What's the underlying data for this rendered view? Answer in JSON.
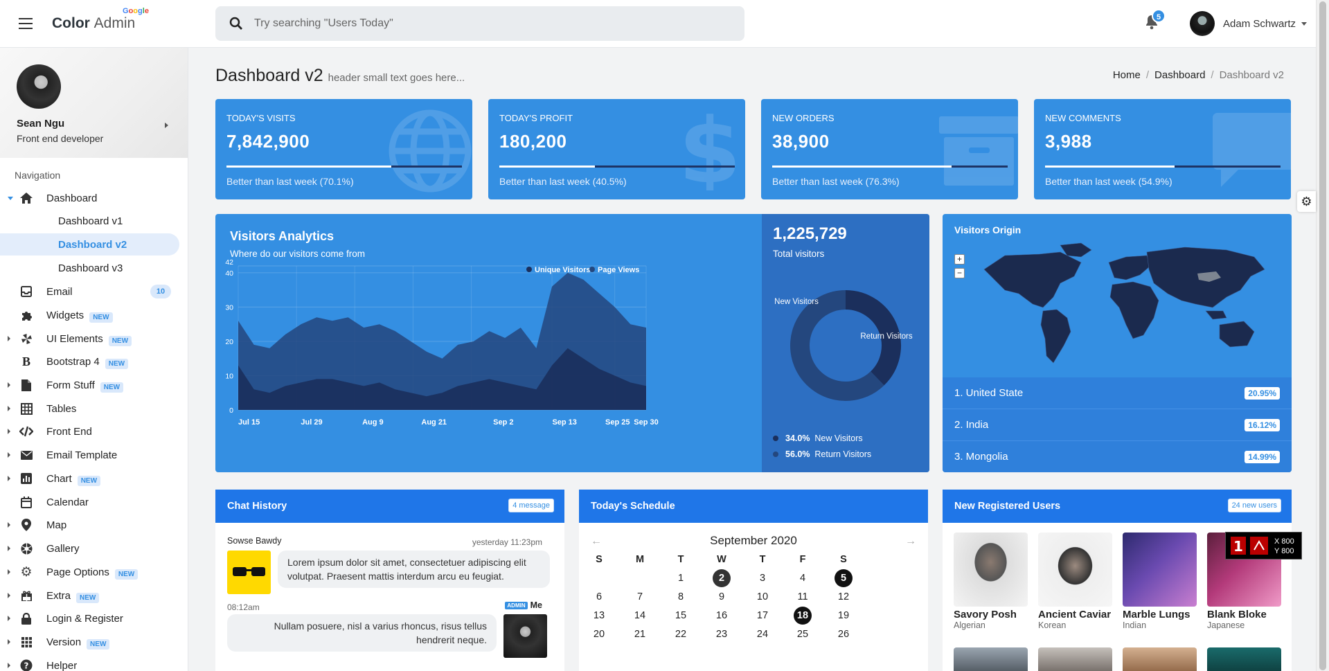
{
  "header": {
    "brand": "Color",
    "brand_light": "Admin",
    "brand_tag": "Google",
    "search_placeholder": "Try searching \"Users Today\"",
    "notifications_count": "5",
    "user_name": "Adam Schwartz"
  },
  "sidebar": {
    "profile_name": "Sean Ngu",
    "profile_role": "Front end developer",
    "nav_heading": "Navigation",
    "dashboard_label": "Dashboard",
    "sub": [
      "Dashboard v1",
      "Dashboard v2",
      "Dashboard v3"
    ],
    "items": [
      {
        "label": "Email",
        "count": "10"
      },
      {
        "label": "Widgets",
        "badge": "NEW"
      },
      {
        "label": "UI Elements",
        "badge": "NEW"
      },
      {
        "label": "Bootstrap 4",
        "badge": "NEW"
      },
      {
        "label": "Form Stuff",
        "badge": "NEW"
      },
      {
        "label": "Tables"
      },
      {
        "label": "Front End"
      },
      {
        "label": "Email Template"
      },
      {
        "label": "Chart",
        "badge": "NEW"
      },
      {
        "label": "Calendar"
      },
      {
        "label": "Map"
      },
      {
        "label": "Gallery"
      },
      {
        "label": "Page Options",
        "badge": "NEW"
      },
      {
        "label": "Extra",
        "badge": "NEW"
      },
      {
        "label": "Login & Register"
      },
      {
        "label": "Version",
        "badge": "NEW"
      },
      {
        "label": "Helper"
      }
    ]
  },
  "page": {
    "title": "Dashboard v2",
    "subtitle": "header small text goes here...",
    "breadcrumb": [
      "Home",
      "Dashboard",
      "Dashboard v2"
    ]
  },
  "stats": [
    {
      "title": "TODAY'S VISITS",
      "value": "7,842,900",
      "desc": "Better than last week (70.1%)",
      "progress": 0.701,
      "icon": "globe-icon"
    },
    {
      "title": "TODAY'S PROFIT",
      "value": "180,200",
      "desc": "Better than last week (40.5%)",
      "progress": 0.405,
      "icon": "dollar-icon"
    },
    {
      "title": "NEW ORDERS",
      "value": "38,900",
      "desc": "Better than last week (76.3%)",
      "progress": 0.763,
      "icon": "archive-icon"
    },
    {
      "title": "NEW COMMENTS",
      "value": "3,988",
      "desc": "Better than last week (54.9%)",
      "progress": 0.549,
      "icon": "comment-icon"
    }
  ],
  "visitors": {
    "title": "Visitors Analytics",
    "subtitle": "Where do our visitors come from",
    "total": "1,225,729",
    "total_label": "Total visitors",
    "legend": [
      {
        "pct": "34.0%",
        "label": "New Visitors"
      },
      {
        "pct": "56.0%",
        "label": "Return Visitors"
      }
    ]
  },
  "chart_data": [
    {
      "type": "area",
      "x": [
        "Jul 15",
        "Jul 18",
        "Jul 21",
        "Jul 24",
        "Jul 27",
        "Jul 30",
        "Aug 2",
        "Aug 5",
        "Aug 8",
        "Aug 11",
        "Aug 14",
        "Aug 17",
        "Aug 20",
        "Aug 23",
        "Aug 26",
        "Aug 29",
        "Sep 1",
        "Sep 4",
        "Sep 7",
        "Sep 10",
        "Sep 13",
        "Sep 16",
        "Sep 19",
        "Sep 22",
        "Sep 25",
        "Sep 28",
        "Sep 30"
      ],
      "x_tick_labels": [
        "Jul 15",
        "Jul 29",
        "Aug 9",
        "Aug 21",
        "Sep 2",
        "Sep 13",
        "Sep 25",
        "Sep 30"
      ],
      "y_ticks": [
        0,
        10,
        20,
        30,
        40,
        42
      ],
      "ylim": [
        0,
        42
      ],
      "legend": [
        "Unique Visitors",
        "Page Views"
      ],
      "series": [
        {
          "name": "Page Views",
          "values": [
            26,
            19,
            18,
            22,
            25,
            27,
            26,
            27,
            24,
            25,
            23,
            20,
            17,
            15,
            19,
            20,
            23,
            21,
            24,
            18,
            36,
            40,
            38,
            34,
            30,
            25,
            24
          ]
        },
        {
          "name": "Unique Visitors",
          "values": [
            13,
            6,
            5,
            7,
            8,
            9,
            9,
            8,
            7,
            8,
            6,
            5,
            4,
            5,
            7,
            8,
            9,
            8,
            7,
            6,
            13,
            18,
            15,
            12,
            10,
            8,
            7
          ]
        }
      ]
    },
    {
      "type": "pie",
      "categories": [
        "New Visitors",
        "Return Visitors"
      ],
      "values": [
        34.0,
        56.0
      ]
    }
  ],
  "origin": {
    "title": "Visitors Origin",
    "zoom_in": "+",
    "zoom_out": "−",
    "rows": [
      {
        "name": "1. United State",
        "pct": "20.95%"
      },
      {
        "name": "2. India",
        "pct": "16.12%"
      },
      {
        "name": "3. Mongolia",
        "pct": "14.99%"
      }
    ]
  },
  "chat": {
    "title": "Chat History",
    "label": "4 message",
    "m1_name": "Sowse Bawdy",
    "m1_time": "yesterday 11:23pm",
    "m1_text": "Lorem ipsum dolor sit amet, consectetuer adipiscing elit volutpat. Praesent mattis interdum arcu eu feugiat.",
    "m2_time": "08:12am",
    "m2_badge": "ADMIN",
    "m2_name": "Me",
    "m2_text": "Nullam posuere, nisl a varius rhoncus, risus tellus hendrerit neque."
  },
  "schedule": {
    "title": "Today's Schedule",
    "month": "September 2020",
    "days": [
      "S",
      "M",
      "T",
      "W",
      "T",
      "F",
      "S"
    ],
    "weeks": [
      [
        "",
        "",
        "1",
        "2",
        "3",
        "4",
        "5"
      ],
      [
        "6",
        "7",
        "8",
        "9",
        "10",
        "11",
        "12"
      ],
      [
        "13",
        "14",
        "15",
        "16",
        "17",
        "18",
        "19"
      ],
      [
        "20",
        "21",
        "22",
        "23",
        "24",
        "25",
        "26"
      ]
    ]
  },
  "new_users": {
    "title": "New Registered Users",
    "label": "24 new users",
    "users": [
      {
        "name": "Savory Posh",
        "country": "Algerian"
      },
      {
        "name": "Ancient Caviar",
        "country": "Korean"
      },
      {
        "name": "Marble Lungs",
        "country": "Indian"
      },
      {
        "name": "Blank Bloke",
        "country": "Japanese"
      }
    ]
  },
  "overlay": {
    "x": "X 800",
    "y": "Y 800"
  }
}
